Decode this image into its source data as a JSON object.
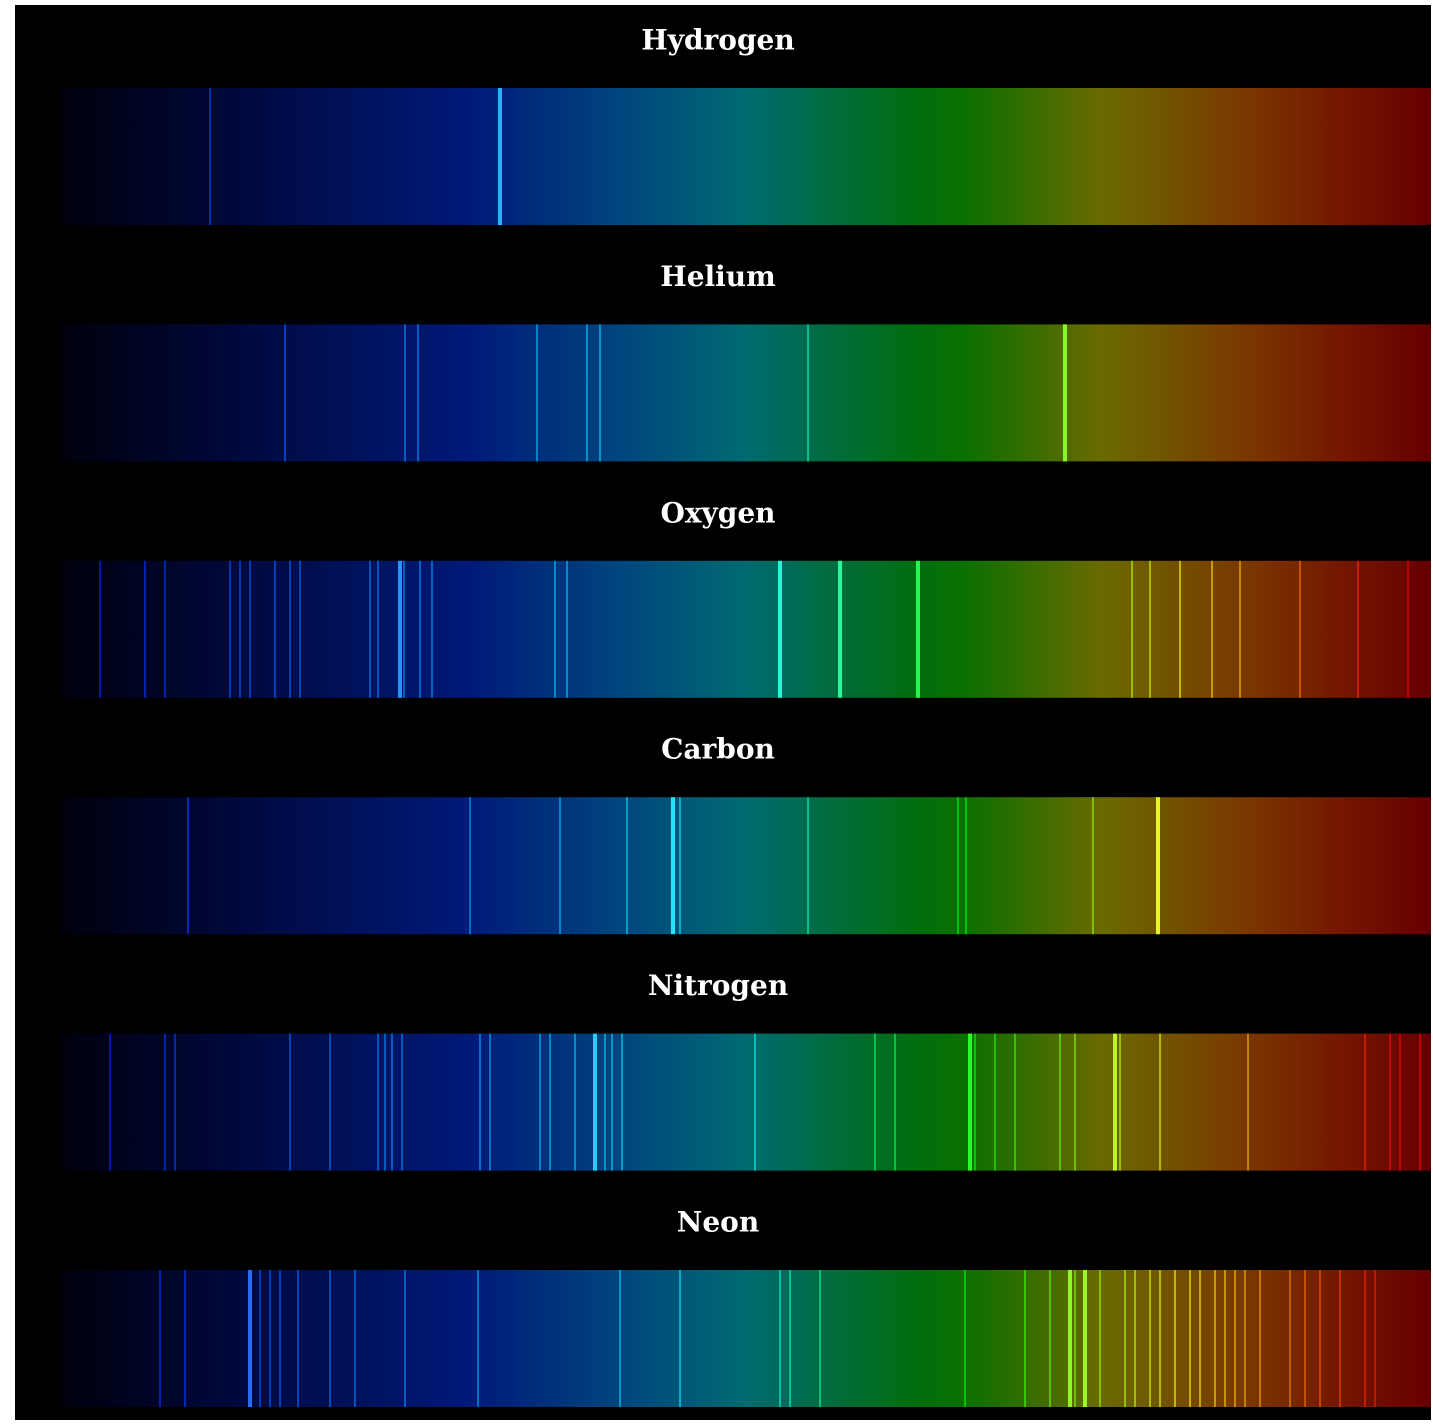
{
  "spectra": [
    {
      "element": "Hydrogen"
    },
    {
      "element": "Helium"
    },
    {
      "element": "Oxygen"
    },
    {
      "element": "Carbon"
    },
    {
      "element": "Nitrogen"
    },
    {
      "element": "Neon"
    }
  ]
}
